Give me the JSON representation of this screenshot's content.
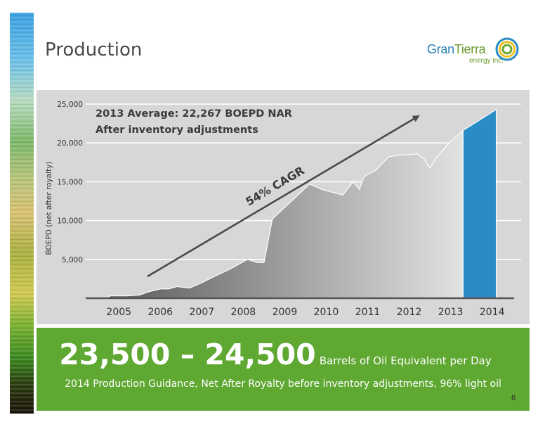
{
  "page": {
    "title": "Production",
    "logo_text_1": "Gran",
    "logo_text_2": "Tierra",
    "logo_sub": "energy inc.",
    "headline_number": "23,500 – 24,500",
    "headline_unit": "Barrels of Oil Equivalent per Day",
    "subline": "2014 Production Guidance, Net After Royalty before inventory adjustments, 96% light oil",
    "page_number": "6"
  },
  "colors": {
    "area_dark": "#5a5a5a",
    "area_light": "#e2e2e2",
    "bar_2014": "#2a8cc4",
    "panel_bg": "#d7d7d7",
    "green_box": "#5fa832",
    "arrow": "#4a4a4a"
  },
  "chart_data": {
    "type": "area",
    "ylabel": "BOEPD (net after royalty)",
    "ylim": [
      0,
      25000
    ],
    "xlim": [
      2004.5,
      2015.0
    ],
    "yticks": [
      {
        "v": 5000,
        "label": "5,000"
      },
      {
        "v": 10000,
        "label": "10,000"
      },
      {
        "v": 15000,
        "label": "15,000"
      },
      {
        "v": 20000,
        "label": "20,000"
      },
      {
        "v": 25000,
        "label": "25,000"
      }
    ],
    "xticks": [
      {
        "v": 2005,
        "label": "2005"
      },
      {
        "v": 2006,
        "label": "2006"
      },
      {
        "v": 2007,
        "label": "2007"
      },
      {
        "v": 2008,
        "label": "2008"
      },
      {
        "v": 2009,
        "label": "2009"
      },
      {
        "v": 2010,
        "label": "2010"
      },
      {
        "v": 2011,
        "label": "2011"
      },
      {
        "v": 2012,
        "label": "2012"
      },
      {
        "v": 2013,
        "label": "2013"
      },
      {
        "v": 2014,
        "label": "2014"
      }
    ],
    "series": [
      {
        "x": [
          2004.98,
          2005.05,
          2005.1,
          2005.5,
          2005.8,
          2006.0,
          2006.3,
          2006.5,
          2006.7,
          2007.0,
          2007.3,
          2007.6,
          2008.0,
          2008.4,
          2008.65,
          2008.8,
          2009.0,
          2009.5,
          2009.9,
          2010.2,
          2010.7,
          2010.95,
          2011.1,
          2011.2,
          2011.25,
          2011.5,
          2011.8,
          2012.0,
          2012.3,
          2012.5,
          2012.65,
          2012.8,
          2013.0,
          2013.3,
          2013.6
        ],
        "y": [
          0,
          200,
          300,
          300,
          400,
          800,
          1200,
          1200,
          1500,
          1300,
          2000,
          2800,
          3800,
          5000,
          4600,
          4600,
          10200,
          12700,
          14700,
          14000,
          13300,
          15000,
          14000,
          15500,
          15800,
          16500,
          18200,
          18400,
          18500,
          18600,
          18000,
          16800,
          18400,
          20200,
          21600
        ]
      },
      {
        "x": [
          2013.6,
          2014.4
        ],
        "y": [
          21600,
          24300
        ]
      }
    ],
    "annotations": [
      {
        "text": "2013 Average: 22,267 BOEPD NAR"
      },
      {
        "text": "After inventory adjustments"
      },
      {
        "text": "54% CAGR"
      }
    ]
  }
}
